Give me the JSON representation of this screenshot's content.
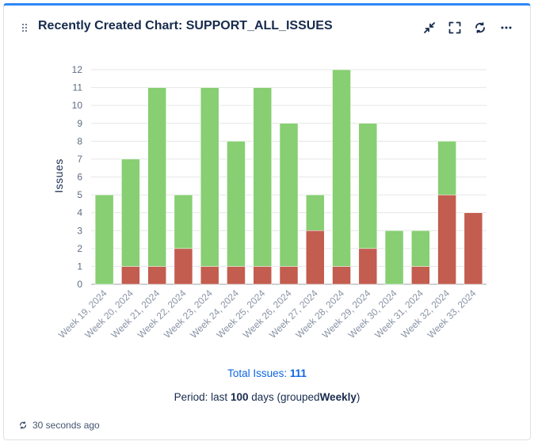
{
  "widget": {
    "title": "Recently Created Chart: SUPPORT_ALL_ISSUES",
    "icons": [
      "minimize-icon",
      "fullscreen-icon",
      "refresh-icon",
      "more-options-icon"
    ]
  },
  "footer": {
    "total_label": "Total Issues:",
    "total_value": "111",
    "period_prefix": "Period: last",
    "period_days": "100",
    "period_middle": "days (grouped",
    "period_group": "Weekly",
    "period_suffix": ")",
    "refresh_text": "30 seconds ago"
  },
  "colors": {
    "accent": "#2f86f5",
    "created": "#87cf72",
    "resolved": "#c25d4f",
    "link": "#0c66e4"
  },
  "chart_data": {
    "type": "bar",
    "stacked": true,
    "ylabel": "Issues",
    "xlabel": "",
    "ylim": [
      0,
      12
    ],
    "yticks": [
      0,
      1,
      2,
      3,
      4,
      5,
      6,
      7,
      8,
      9,
      10,
      11,
      12
    ],
    "categories": [
      "Week 19, 2024",
      "Week 20, 2024",
      "Week 21, 2024",
      "Week 22, 2024",
      "Week 23, 2024",
      "Week 24, 2024",
      "Week 25, 2024",
      "Week 26, 2024",
      "Week 27, 2024",
      "Week 28, 2024",
      "Week 29, 2024",
      "Week 30, 2024",
      "Week 31, 2024",
      "Week 32, 2024",
      "Week 33, 2024"
    ],
    "series": [
      {
        "values": [
          0,
          1,
          1,
          2,
          1,
          1,
          1,
          1,
          3,
          1,
          2,
          0,
          1,
          5,
          4
        ],
        "color": "#c25d4f"
      },
      {
        "values": [
          5,
          6,
          10,
          3,
          10,
          7,
          10,
          8,
          2,
          11,
          7,
          3,
          2,
          3,
          0
        ],
        "color": "#87cf72"
      }
    ],
    "grid": true,
    "legend": "none"
  }
}
